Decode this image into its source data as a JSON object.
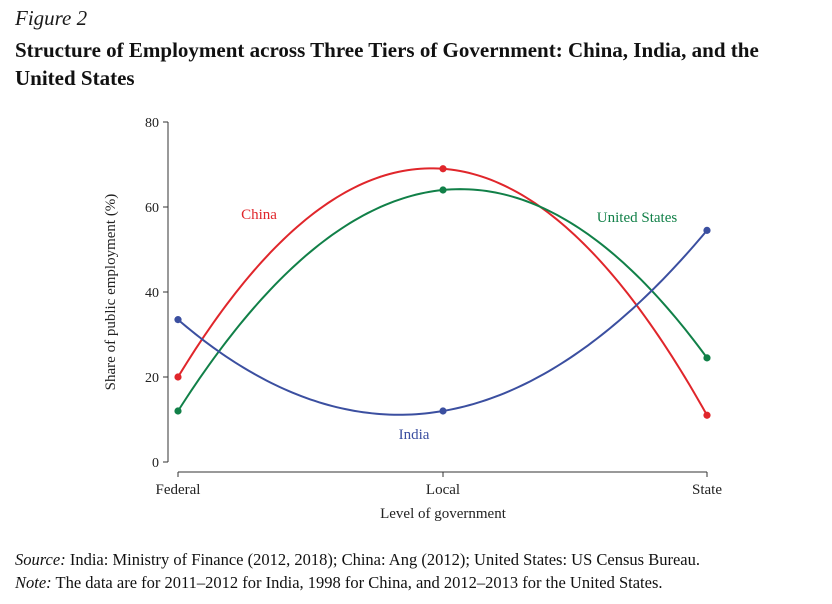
{
  "figure": {
    "label": "Figure 2",
    "title": "Structure of Employment across Three Tiers of Government: China, India, and the United States"
  },
  "chart_data": {
    "type": "line",
    "title": "Structure of Employment across Three Tiers of Government: China, India, and the United States",
    "categories": [
      "Federal",
      "Local",
      "State"
    ],
    "xlabel": "Level of government",
    "ylabel": "Share of public employment (%)",
    "ylim": [
      0,
      80
    ],
    "yticks": [
      0,
      20,
      40,
      60,
      80
    ],
    "grid": false,
    "series": [
      {
        "name": "China",
        "label": "China",
        "color": "#e0262b",
        "values": [
          20,
          69,
          11
        ]
      },
      {
        "name": "United States",
        "label": "United States",
        "color": "#118048",
        "values": [
          12,
          64,
          24.5
        ]
      },
      {
        "name": "India",
        "label": "India",
        "color": "#3b4fa0",
        "values": [
          33.5,
          12,
          54.5
        ]
      }
    ]
  },
  "footer": {
    "source_lead": "Source:",
    "source_text": " India: Ministry of Finance (2012, 2018); China: Ang (2012); United States: US Census Bureau.",
    "note_lead": "Note:",
    "note_text": " The data are for 2011–2012 for India, 1998 for China, and 2012–2013 for the United States."
  }
}
